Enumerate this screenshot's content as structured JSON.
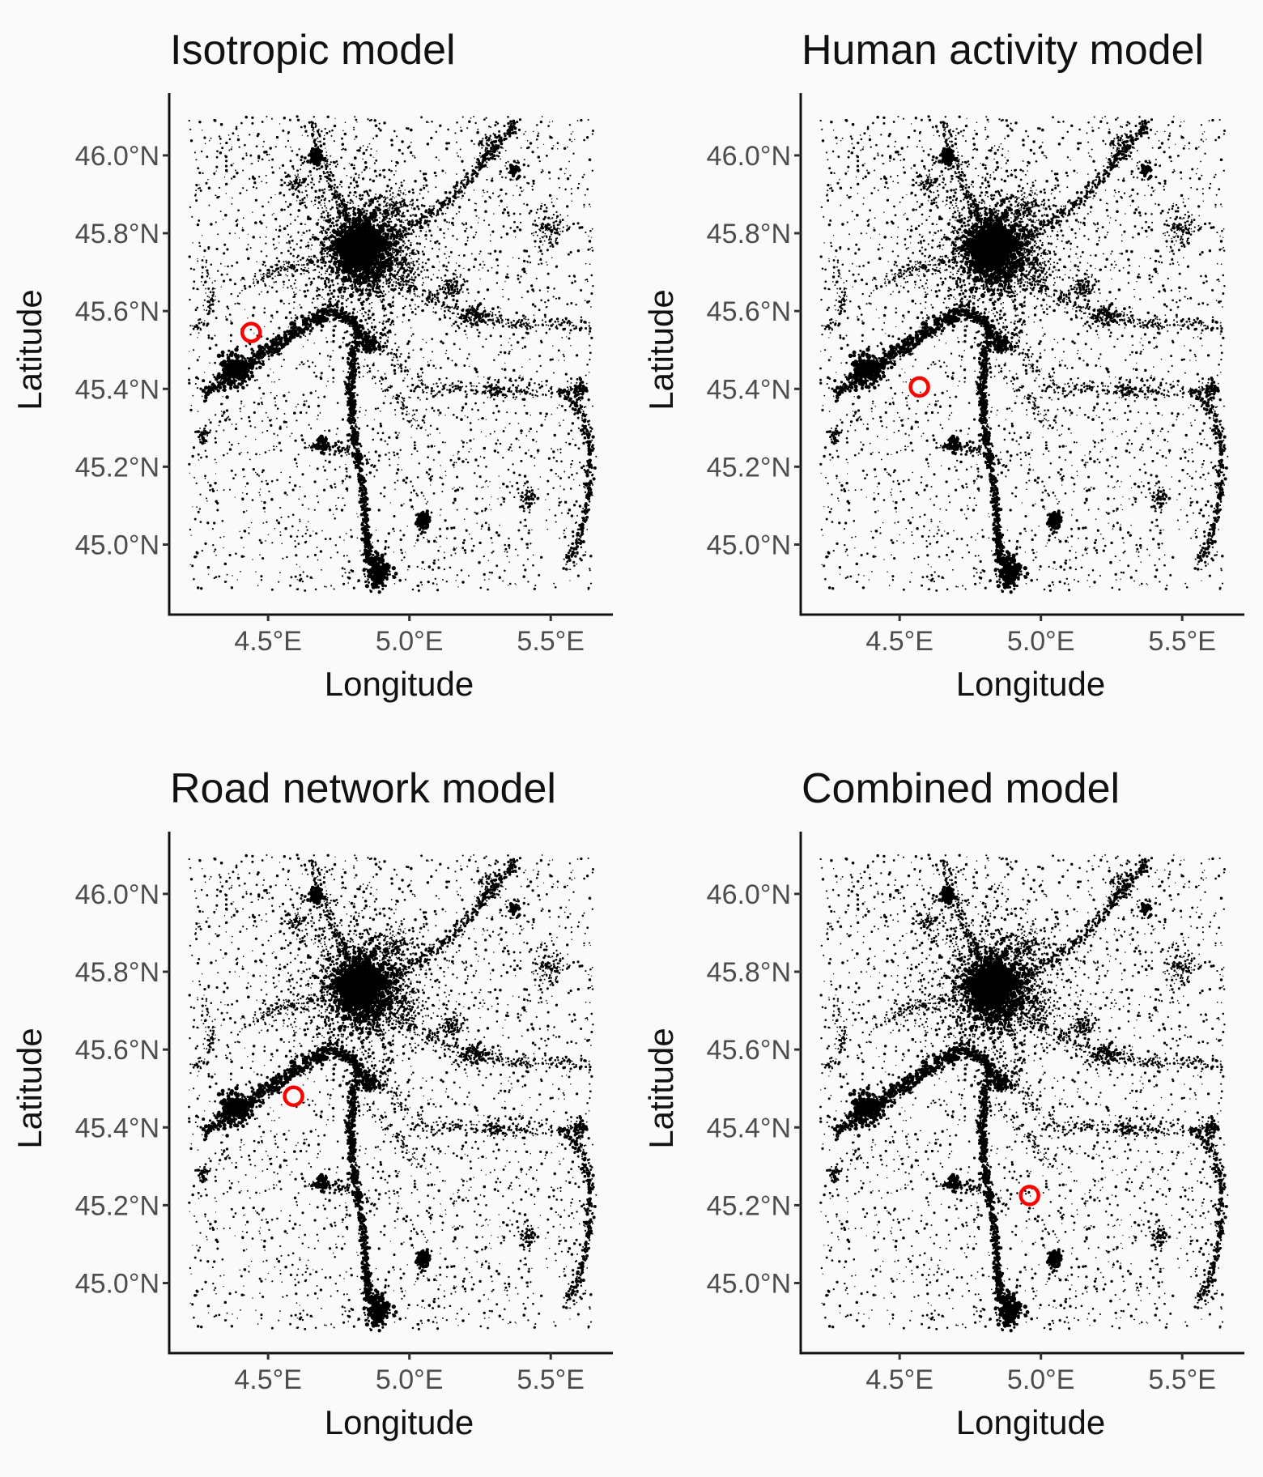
{
  "figure": {
    "background": "#fafafa",
    "layout": "2x2 grid",
    "points_color": "#000000",
    "marker_color": "#ff0000"
  },
  "chart_data": [
    {
      "type": "scatter",
      "title": "Isotropic model",
      "xlabel": "Longitude",
      "ylabel": "Latitude",
      "x_ticks": [
        {
          "value": 4.5,
          "label": "4.5°E"
        },
        {
          "value": 5.0,
          "label": "5.0°E"
        },
        {
          "value": 5.5,
          "label": "5.5°E"
        }
      ],
      "y_ticks": [
        {
          "value": 45.0,
          "label": "45.0°N"
        },
        {
          "value": 45.2,
          "label": "45.2°N"
        },
        {
          "value": 45.4,
          "label": "45.4°N"
        },
        {
          "value": 45.6,
          "label": "45.6°N"
        },
        {
          "value": 45.8,
          "label": "45.8°N"
        },
        {
          "value": 46.0,
          "label": "46.0°N"
        }
      ],
      "xlim": [
        4.15,
        5.72
      ],
      "ylim": [
        44.82,
        46.16
      ],
      "grid": false,
      "series": [
        {
          "marker": "open-circle",
          "color": "#ff0000",
          "x": [
            4.44
          ],
          "y": [
            45.545
          ]
        }
      ]
    },
    {
      "type": "scatter",
      "title": "Human activity model",
      "xlabel": "Longitude",
      "ylabel": "Latitude",
      "x_ticks": [
        {
          "value": 4.5,
          "label": "4.5°E"
        },
        {
          "value": 5.0,
          "label": "5.0°E"
        },
        {
          "value": 5.5,
          "label": "5.5°E"
        }
      ],
      "y_ticks": [
        {
          "value": 45.0,
          "label": "45.0°N"
        },
        {
          "value": 45.2,
          "label": "45.2°N"
        },
        {
          "value": 45.4,
          "label": "45.4°N"
        },
        {
          "value": 45.6,
          "label": "45.6°N"
        },
        {
          "value": 45.8,
          "label": "45.8°N"
        },
        {
          "value": 46.0,
          "label": "46.0°N"
        }
      ],
      "xlim": [
        4.15,
        5.72
      ],
      "ylim": [
        44.82,
        46.16
      ],
      "grid": false,
      "series": [
        {
          "marker": "open-circle",
          "color": "#ff0000",
          "x": [
            4.57
          ],
          "y": [
            45.405
          ]
        }
      ]
    },
    {
      "type": "scatter",
      "title": "Road network model",
      "xlabel": "Longitude",
      "ylabel": "Latitude",
      "x_ticks": [
        {
          "value": 4.5,
          "label": "4.5°E"
        },
        {
          "value": 5.0,
          "label": "5.0°E"
        },
        {
          "value": 5.5,
          "label": "5.5°E"
        }
      ],
      "y_ticks": [
        {
          "value": 45.0,
          "label": "45.0°N"
        },
        {
          "value": 45.2,
          "label": "45.2°N"
        },
        {
          "value": 45.4,
          "label": "45.4°N"
        },
        {
          "value": 45.6,
          "label": "45.6°N"
        },
        {
          "value": 45.8,
          "label": "45.8°N"
        },
        {
          "value": 46.0,
          "label": "46.0°N"
        }
      ],
      "xlim": [
        4.15,
        5.72
      ],
      "ylim": [
        44.82,
        46.16
      ],
      "grid": false,
      "series": [
        {
          "marker": "open-circle",
          "color": "#ff0000",
          "x": [
            4.59
          ],
          "y": [
            45.48
          ]
        }
      ]
    },
    {
      "type": "scatter",
      "title": "Combined model",
      "xlabel": "Longitude",
      "ylabel": "Latitude",
      "x_ticks": [
        {
          "value": 4.5,
          "label": "4.5°E"
        },
        {
          "value": 5.0,
          "label": "5.0°E"
        },
        {
          "value": 5.5,
          "label": "5.5°E"
        }
      ],
      "y_ticks": [
        {
          "value": 45.0,
          "label": "45.0°N"
        },
        {
          "value": 45.2,
          "label": "45.2°N"
        },
        {
          "value": 45.4,
          "label": "45.4°N"
        },
        {
          "value": 45.6,
          "label": "45.6°N"
        },
        {
          "value": 45.8,
          "label": "45.8°N"
        },
        {
          "value": 46.0,
          "label": "46.0°N"
        }
      ],
      "xlim": [
        4.15,
        5.72
      ],
      "ylim": [
        44.82,
        46.16
      ],
      "grid": false,
      "series": [
        {
          "marker": "open-circle",
          "color": "#ff0000",
          "x": [
            4.96
          ],
          "y": [
            45.225
          ]
        }
      ]
    }
  ]
}
